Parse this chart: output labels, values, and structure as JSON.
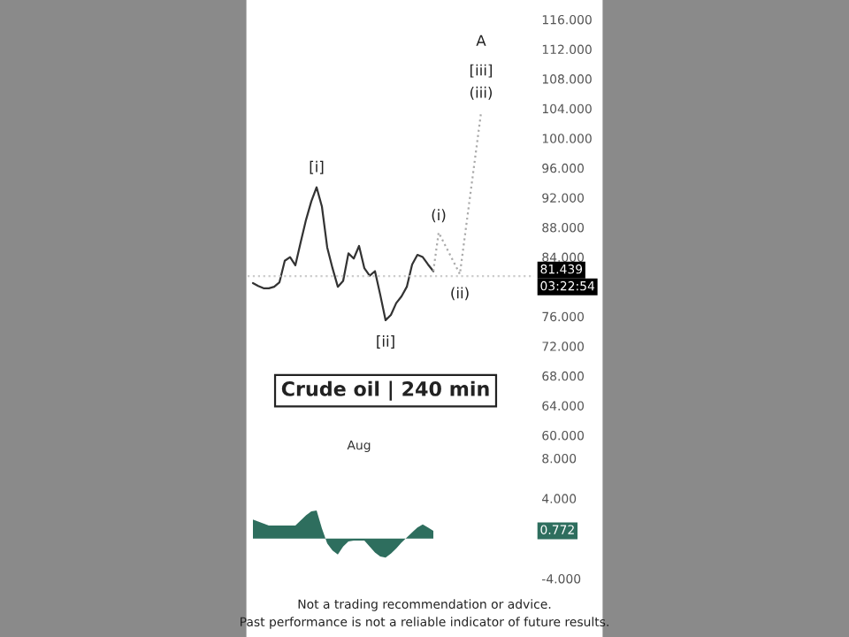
{
  "chart_data": [
    {
      "type": "line",
      "annotations": [
        "[i]",
        "[ii]",
        "(i)",
        "(ii)",
        "A",
        "[iii]",
        "(iii)",
        "Crude oil | 240 min",
        "03:22:54",
        "Aug"
      ],
      "categories": [
        null,
        null,
        null,
        null,
        null,
        null,
        null,
        null,
        null,
        null,
        null,
        null,
        null,
        null,
        null,
        null,
        null,
        null,
        null,
        null,
        null,
        null,
        null,
        null,
        null,
        null,
        null,
        null,
        null,
        null,
        null,
        null,
        null,
        null,
        null,
        null,
        null,
        null,
        null,
        null,
        null,
        null,
        null,
        null
      ],
      "series": [
        {
          "color": "#333333",
          "values": [
            80.5,
            80.1,
            79.8,
            79.8,
            80.0,
            80.6,
            83.5,
            84.0,
            82.9,
            86.0,
            89.0,
            91.5,
            93.4,
            90.8,
            85.3,
            82.5,
            80.0,
            80.8,
            84.5,
            83.8,
            85.5,
            82.5,
            81.5,
            82.1,
            78.9,
            75.5,
            76.2,
            77.8,
            78.7,
            80.0,
            83.0,
            84.3,
            84.0,
            83.0,
            82.1,
            null,
            null,
            null,
            null,
            null,
            null,
            null,
            null,
            null
          ]
        },
        {
          "color": "#aaaaaa",
          "line_style": "dotted",
          "values": [
            null,
            null,
            null,
            null,
            null,
            null,
            null,
            null,
            null,
            null,
            null,
            null,
            null,
            null,
            null,
            null,
            null,
            null,
            null,
            null,
            null,
            null,
            null,
            null,
            null,
            null,
            null,
            null,
            null,
            null,
            null,
            null,
            null,
            null,
            82.1,
            87.3,
            null,
            null,
            null,
            81.7,
            null,
            null,
            null,
            103.5
          ]
        }
      ],
      "ylim": [
        60,
        116
      ],
      "yticks": [
        {
          "value": 60,
          "label": "60.000"
        },
        {
          "value": 64,
          "label": "64.000"
        },
        {
          "value": 68,
          "label": "68.000"
        },
        {
          "value": 72,
          "label": "72.000"
        },
        {
          "value": 76,
          "label": "76.000"
        },
        {
          "value": 84,
          "label": "84.000"
        },
        {
          "value": 88,
          "label": "88.000"
        },
        {
          "value": 92,
          "label": "92.000"
        },
        {
          "value": 96,
          "label": "96.000"
        },
        {
          "value": 100,
          "label": "100.000"
        },
        {
          "value": 104,
          "label": "104.000"
        },
        {
          "value": 108,
          "label": "108.000"
        },
        {
          "value": 112,
          "label": "112.000"
        },
        {
          "value": 116,
          "label": "116.000"
        }
      ],
      "ref_lines": [
        {
          "axis": "y",
          "value": 81.439,
          "label": "81.439",
          "color": "#cccccc",
          "line_style": "dotted"
        }
      ],
      "grid": false
    },
    {
      "type": "area",
      "categories": [
        null,
        null,
        null,
        null,
        null,
        null,
        null,
        null,
        null,
        null,
        null,
        null,
        null,
        null,
        null,
        null,
        null,
        null,
        null,
        null,
        null,
        null,
        null,
        null,
        null,
        null,
        null,
        null,
        null,
        null,
        null,
        null,
        null,
        null,
        null,
        null,
        null,
        null,
        null,
        null,
        null,
        null,
        null,
        null
      ],
      "series": [
        {
          "color": "#2e6e5e",
          "values": [
            1.9,
            1.7,
            1.5,
            1.3,
            1.3,
            1.3,
            1.3,
            1.3,
            1.3,
            1.8,
            2.3,
            2.7,
            2.8,
            1.0,
            -0.5,
            -1.2,
            -1.6,
            -0.8,
            -0.3,
            -0.2,
            -0.2,
            -0.2,
            -0.8,
            -1.4,
            -1.8,
            -1.9,
            -1.5,
            -1.0,
            -0.4,
            0.1,
            0.6,
            1.1,
            1.4,
            1.1,
            0.772,
            null,
            null,
            null,
            null,
            null,
            null,
            null,
            null,
            null
          ]
        }
      ],
      "ylim": [
        -4,
        8
      ],
      "yticks": [
        {
          "value": -4,
          "label": "-4.000"
        },
        {
          "value": 4,
          "label": "4.000"
        },
        {
          "value": 8,
          "label": "8.000"
        }
      ],
      "annotations": [
        "0.772",
        "Not a trading recommendation or advice.",
        "Past performance is not a reliable indicator of future results."
      ],
      "grid": false
    }
  ]
}
